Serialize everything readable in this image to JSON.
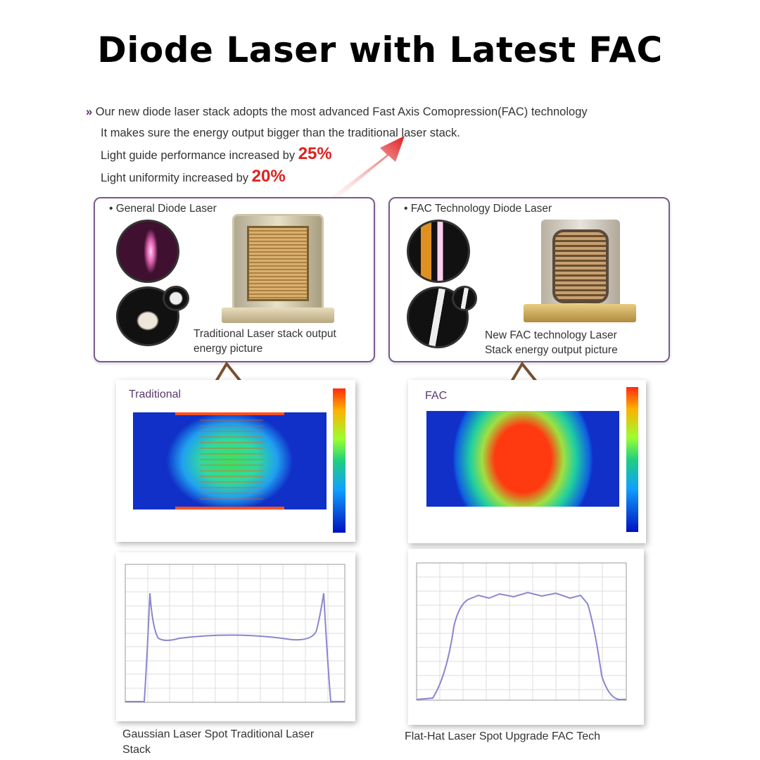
{
  "title": "Diode Laser with Latest FAC",
  "intro": {
    "line1": "Our new diode laser stack adopts the most advanced Fast Axis Comopression(FAC) technology",
    "line2": "It makes sure the energy output bigger than the traditional laser stack.",
    "line3": "Light guide performance increased by",
    "line3_value": "25%",
    "line4": "Light uniformity increased by",
    "line4_value": "20%",
    "bullet": "»"
  },
  "left": {
    "label": "• General Diode Laser",
    "caption1": "Traditional Laser stack output",
    "caption2": "energy picture",
    "heatmap_label": "Traditional",
    "profile_caption1": "Gaussian Laser Spot Traditional Laser",
    "profile_caption2": "Stack"
  },
  "right": {
    "label": "• FAC Technology Diode Laser",
    "caption1": "New FAC technology Laser",
    "caption2": "Stack energy output picture",
    "heatmap_label": "FAC",
    "profile_caption1": "Flat-Hat Laser Spot Upgrade FAC Tech"
  },
  "colors": {
    "accent": "#e0201e",
    "frame": "#7a5a8e",
    "profile_line": "#8a86d0"
  }
}
